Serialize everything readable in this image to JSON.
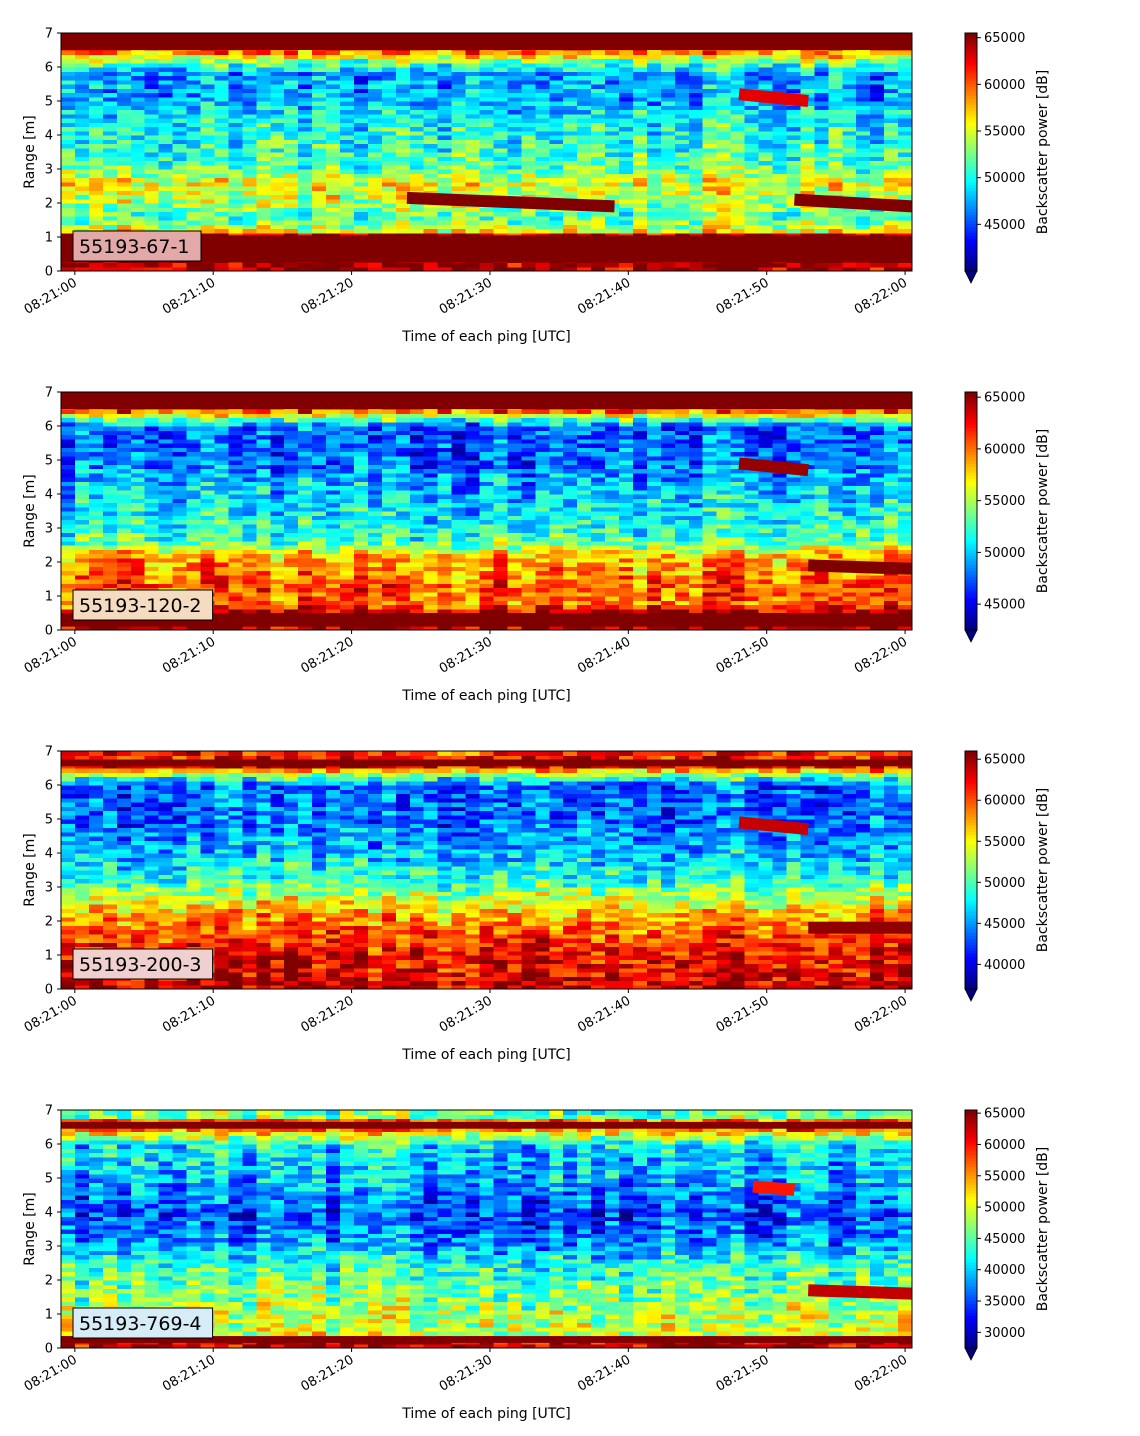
{
  "chart_data": [
    {
      "type": "heatmap",
      "label": "55193-67-1",
      "label_bg": "#e3a8a8",
      "xlabel": "Time of each ping [UTC]",
      "ylabel": "Range [m]",
      "x_ticks": [
        "08:21:00",
        "08:21:10",
        "08:21:20",
        "08:21:30",
        "08:21:40",
        "08:21:50",
        "08:22:00"
      ],
      "xlim": [
        "08:20:59",
        "08:22:00.5"
      ],
      "ylim": [
        0,
        7
      ],
      "y_ticks": [
        0,
        1,
        2,
        3,
        4,
        5,
        6,
        7
      ],
      "colorbar": {
        "label": "Backscatter power [dB]",
        "range": [
          40000,
          65500
        ],
        "ticks": [
          45000,
          50000,
          55000,
          60000,
          65000
        ],
        "extend": "min",
        "colormap": "jet"
      },
      "features": [
        {
          "kind": "band",
          "range_m": [
            0.25,
            1.05
          ],
          "level": 66000
        },
        {
          "kind": "band",
          "range_m": [
            6.5,
            7.0
          ],
          "level": 66000
        },
        {
          "kind": "line",
          "time_s": [
            24,
            39
          ],
          "range_m": [
            2.15,
            1.9
          ],
          "level": 65500
        },
        {
          "kind": "line",
          "time_s": [
            52,
            60.5
          ],
          "range_m": [
            2.1,
            1.9
          ],
          "level": 65500
        },
        {
          "kind": "line",
          "time_s": [
            48,
            53
          ],
          "range_m": [
            5.2,
            5.0
          ],
          "level": 63000
        }
      ]
    },
    {
      "type": "heatmap",
      "label": "55193-120-2",
      "label_bg": "#f5dcc0",
      "xlabel": "Time of each ping [UTC]",
      "ylabel": "Range [m]",
      "x_ticks": [
        "08:21:00",
        "08:21:10",
        "08:21:20",
        "08:21:30",
        "08:21:40",
        "08:21:50",
        "08:22:00"
      ],
      "xlim": [
        "08:20:59",
        "08:22:00.5"
      ],
      "ylim": [
        0,
        7
      ],
      "y_ticks": [
        0,
        1,
        2,
        3,
        4,
        5,
        6,
        7
      ],
      "colorbar": {
        "label": "Backscatter power [dB]",
        "range": [
          42500,
          65500
        ],
        "ticks": [
          45000,
          50000,
          55000,
          60000,
          65000
        ],
        "extend": "min",
        "colormap": "jet"
      },
      "features": [
        {
          "kind": "band",
          "range_m": [
            0.1,
            0.5
          ],
          "level": 66000
        },
        {
          "kind": "band",
          "range_m": [
            6.5,
            7.0
          ],
          "level": 66000
        },
        {
          "kind": "line",
          "time_s": [
            48,
            53
          ],
          "range_m": [
            4.9,
            4.7
          ],
          "level": 65000
        },
        {
          "kind": "line",
          "time_s": [
            53,
            60.5
          ],
          "range_m": [
            1.9,
            1.8
          ],
          "level": 65500
        }
      ]
    },
    {
      "type": "heatmap",
      "label": "55193-200-3",
      "label_bg": "#f0cfcf",
      "xlabel": "Time of each ping [UTC]",
      "ylabel": "Range [m]",
      "x_ticks": [
        "08:21:00",
        "08:21:10",
        "08:21:20",
        "08:21:30",
        "08:21:40",
        "08:21:50",
        "08:22:00"
      ],
      "xlim": [
        "08:20:59",
        "08:22:00.5"
      ],
      "ylim": [
        0,
        7
      ],
      "y_ticks": [
        0,
        1,
        2,
        3,
        4,
        5,
        6,
        7
      ],
      "colorbar": {
        "label": "Backscatter power [dB]",
        "range": [
          37000,
          66000
        ],
        "ticks": [
          40000,
          45000,
          50000,
          55000,
          60000,
          65000
        ],
        "extend": "min",
        "colormap": "jet"
      },
      "features": [
        {
          "kind": "band",
          "range_m": [
            6.55,
            6.75
          ],
          "level": 66000
        },
        {
          "kind": "line",
          "time_s": [
            48,
            53
          ],
          "range_m": [
            4.9,
            4.7
          ],
          "level": 64000
        },
        {
          "kind": "line",
          "time_s": [
            53,
            60.5
          ],
          "range_m": [
            1.8,
            1.8
          ],
          "level": 65500
        }
      ]
    },
    {
      "type": "heatmap",
      "label": "55193-769-4",
      "label_bg": "#d6ecf7",
      "xlabel": "Time of each ping [UTC]",
      "ylabel": "Range [m]",
      "x_ticks": [
        "08:21:00",
        "08:21:10",
        "08:21:20",
        "08:21:30",
        "08:21:40",
        "08:21:50",
        "08:22:00"
      ],
      "xlim": [
        "08:20:59",
        "08:22:00.5"
      ],
      "ylim": [
        0,
        7
      ],
      "y_ticks": [
        0,
        1,
        2,
        3,
        4,
        5,
        6,
        7
      ],
      "colorbar": {
        "label": "Backscatter power [dB]",
        "range": [
          27500,
          65500
        ],
        "ticks": [
          30000,
          35000,
          40000,
          45000,
          50000,
          55000,
          60000,
          65000
        ],
        "extend": "min",
        "colormap": "jet"
      },
      "features": [
        {
          "kind": "band",
          "range_m": [
            0.15,
            0.35
          ],
          "level": 66000
        },
        {
          "kind": "band",
          "range_m": [
            6.45,
            6.65
          ],
          "level": 66000
        },
        {
          "kind": "line",
          "time_s": [
            49,
            52
          ],
          "range_m": [
            4.75,
            4.65
          ],
          "level": 60000
        },
        {
          "kind": "line",
          "time_s": [
            53,
            60.5
          ],
          "range_m": [
            1.7,
            1.6
          ],
          "level": 63000
        }
      ]
    }
  ]
}
